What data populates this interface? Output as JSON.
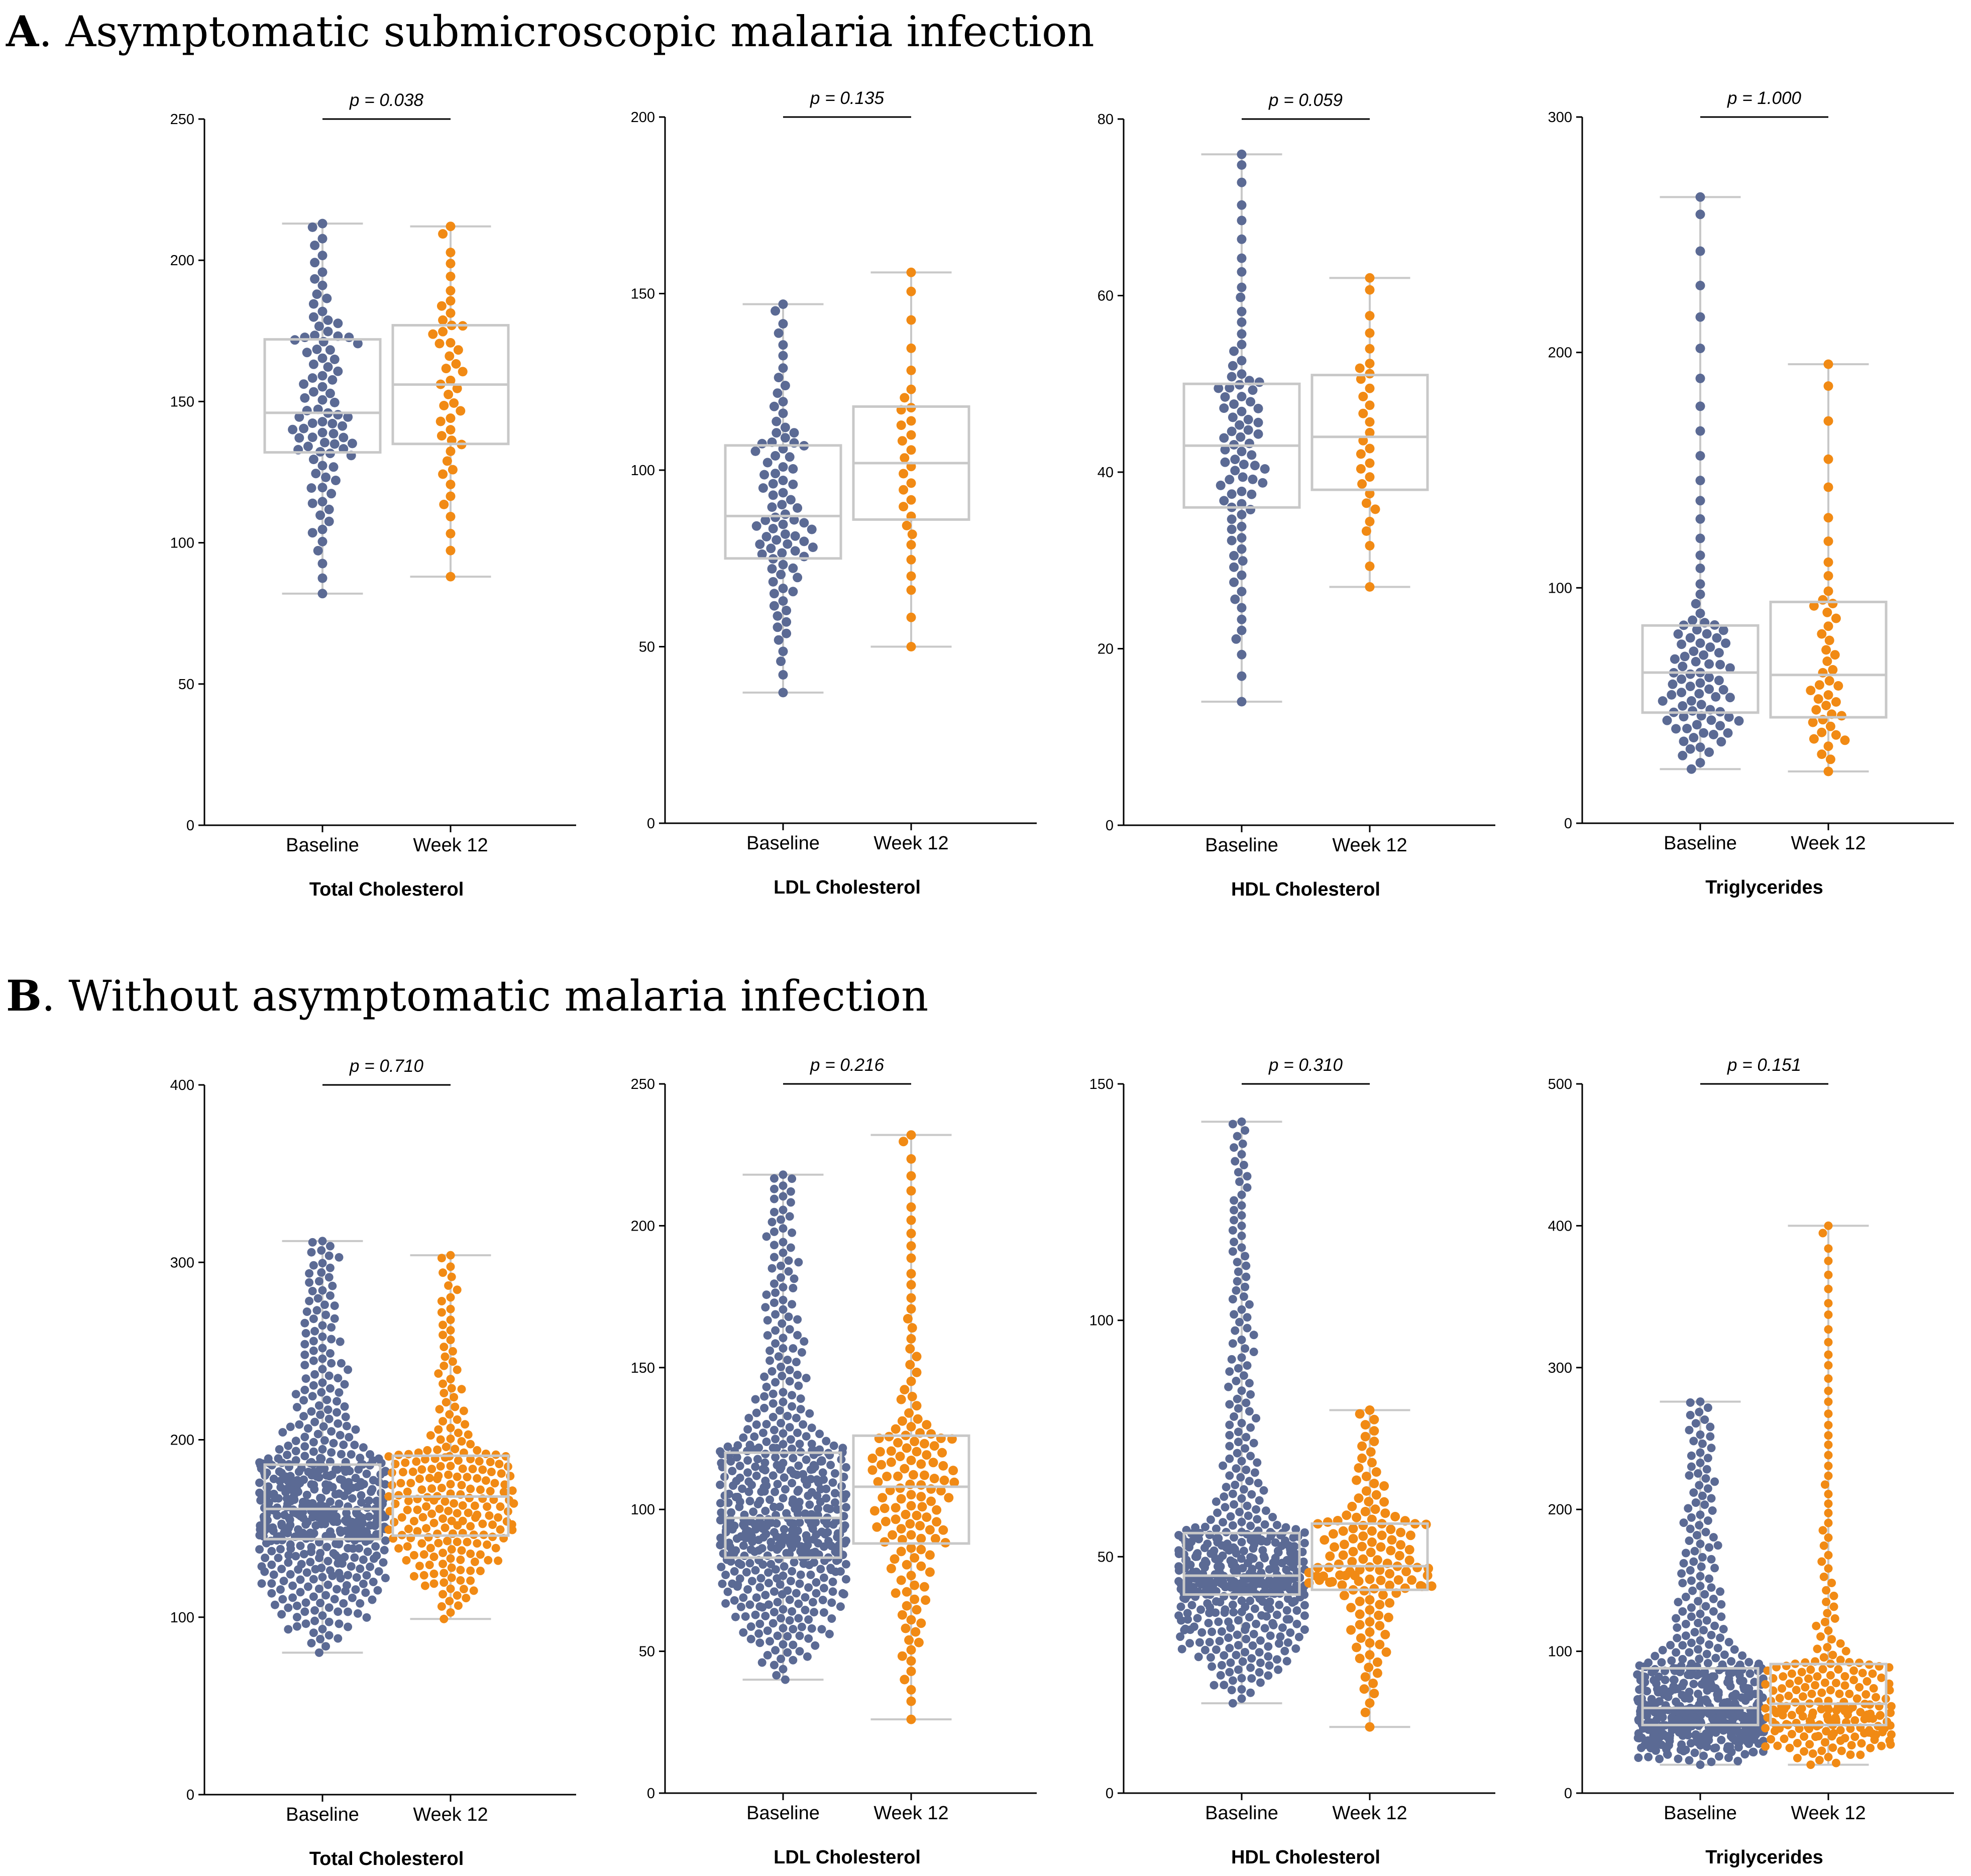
{
  "panels": [
    {
      "letter": "A",
      "title": ". Asymptomatic submicroscopic malaria infection"
    },
    {
      "letter": "B",
      "title": ". Without asymptomatic malaria infection"
    }
  ],
  "colors": {
    "baseline": "#5b6a94",
    "week12": "#f18a14",
    "box": "#c8c8c8"
  },
  "chart_data": [
    {
      "type": "box-swarm",
      "panel": "A",
      "title": "Total Cholesterol",
      "categories": [
        "Baseline",
        "Week 12"
      ],
      "ylim": [
        0,
        250
      ],
      "yticks": [
        0,
        50,
        100,
        150,
        200,
        250
      ],
      "p_value": "p = 0.038",
      "series": [
        {
          "name": "Baseline",
          "color": "#5b6a94",
          "n": 90,
          "min": 82,
          "q1": 132,
          "median": 146,
          "q3": 172,
          "max": 213
        },
        {
          "name": "Week 12",
          "color": "#f18a14",
          "n": 45,
          "min": 88,
          "q1": 135,
          "median": 156,
          "q3": 177,
          "max": 212
        }
      ]
    },
    {
      "type": "box-swarm",
      "panel": "A",
      "title": "LDL Cholesterol",
      "categories": [
        "Baseline",
        "Week 12"
      ],
      "ylim": [
        0,
        200
      ],
      "yticks": [
        0,
        50,
        100,
        150,
        200
      ],
      "p_value": "p = 0.135",
      "series": [
        {
          "name": "Baseline",
          "color": "#5b6a94",
          "n": 85,
          "min": 37,
          "q1": 75,
          "median": 87,
          "q3": 107,
          "max": 147
        },
        {
          "name": "Week 12",
          "color": "#f18a14",
          "n": 30,
          "min": 50,
          "q1": 86,
          "median": 102,
          "q3": 118,
          "max": 156
        }
      ]
    },
    {
      "type": "box-swarm",
      "panel": "A",
      "title": "HDL Cholesterol",
      "categories": [
        "Baseline",
        "Week 12"
      ],
      "ylim": [
        0,
        80
      ],
      "yticks": [
        0,
        20,
        40,
        60,
        80
      ],
      "p_value": "p = 0.059",
      "series": [
        {
          "name": "Baseline",
          "color": "#5b6a94",
          "n": 85,
          "min": 14,
          "q1": 36,
          "median": 43,
          "q3": 50,
          "max": 76
        },
        {
          "name": "Week 12",
          "color": "#f18a14",
          "n": 30,
          "min": 27,
          "q1": 38,
          "median": 44,
          "q3": 51,
          "max": 62
        }
      ]
    },
    {
      "type": "box-swarm",
      "panel": "A",
      "title": "Triglycerides",
      "categories": [
        "Baseline",
        "Week 12"
      ],
      "ylim": [
        0,
        300
      ],
      "yticks": [
        0,
        100,
        200,
        300
      ],
      "p_value": "p = 1.000",
      "series": [
        {
          "name": "Baseline",
          "color": "#5b6a94",
          "n": 90,
          "min": 23,
          "q1": 47,
          "median": 64,
          "q3": 84,
          "max": 266
        },
        {
          "name": "Week 12",
          "color": "#f18a14",
          "n": 45,
          "min": 22,
          "q1": 45,
          "median": 63,
          "q3": 94,
          "max": 195
        }
      ]
    },
    {
      "type": "box-swarm",
      "panel": "B",
      "title": "Total Cholesterol",
      "categories": [
        "Baseline",
        "Week 12"
      ],
      "ylim": [
        0,
        400
      ],
      "yticks": [
        0,
        100,
        200,
        300,
        400
      ],
      "p_value": "p = 0.710",
      "series": [
        {
          "name": "Baseline",
          "color": "#5b6a94",
          "n": 520,
          "min": 80,
          "q1": 144,
          "median": 161,
          "q3": 186,
          "max": 312
        },
        {
          "name": "Week 12",
          "color": "#f18a14",
          "n": 230,
          "min": 99,
          "q1": 146,
          "median": 168,
          "q3": 191,
          "max": 304
        }
      ]
    },
    {
      "type": "box-swarm",
      "panel": "B",
      "title": "LDL Cholesterol",
      "categories": [
        "Baseline",
        "Week 12"
      ],
      "ylim": [
        0,
        250
      ],
      "yticks": [
        0,
        50,
        100,
        150,
        200,
        250
      ],
      "p_value": "p = 0.216",
      "series": [
        {
          "name": "Baseline",
          "color": "#5b6a94",
          "n": 520,
          "min": 40,
          "q1": 83,
          "median": 97,
          "q3": 120,
          "max": 218
        },
        {
          "name": "Week 12",
          "color": "#f18a14",
          "n": 140,
          "min": 26,
          "q1": 88,
          "median": 108,
          "q3": 126,
          "max": 232
        }
      ]
    },
    {
      "type": "box-swarm",
      "panel": "B",
      "title": "HDL Cholesterol",
      "categories": [
        "Baseline",
        "Week 12"
      ],
      "ylim": [
        0,
        150
      ],
      "yticks": [
        0,
        50,
        100,
        150
      ],
      "p_value": "p = 0.310",
      "series": [
        {
          "name": "Baseline",
          "color": "#5b6a94",
          "n": 520,
          "min": 19,
          "q1": 42,
          "median": 46,
          "q3": 55,
          "max": 142
        },
        {
          "name": "Week 12",
          "color": "#f18a14",
          "n": 140,
          "min": 14,
          "q1": 43,
          "median": 48,
          "q3": 57,
          "max": 81
        }
      ]
    },
    {
      "type": "box-swarm",
      "panel": "B",
      "title": "Triglycerides",
      "categories": [
        "Baseline",
        "Week 12"
      ],
      "ylim": [
        0,
        500
      ],
      "yticks": [
        0,
        100,
        200,
        300,
        400,
        500
      ],
      "p_value": "p = 0.151",
      "series": [
        {
          "name": "Baseline",
          "color": "#5b6a94",
          "n": 520,
          "min": 20,
          "q1": 48,
          "median": 60,
          "q3": 88,
          "max": 276
        },
        {
          "name": "Week 12",
          "color": "#f18a14",
          "n": 230,
          "min": 20,
          "q1": 48,
          "median": 63,
          "q3": 91,
          "max": 400
        }
      ]
    }
  ]
}
